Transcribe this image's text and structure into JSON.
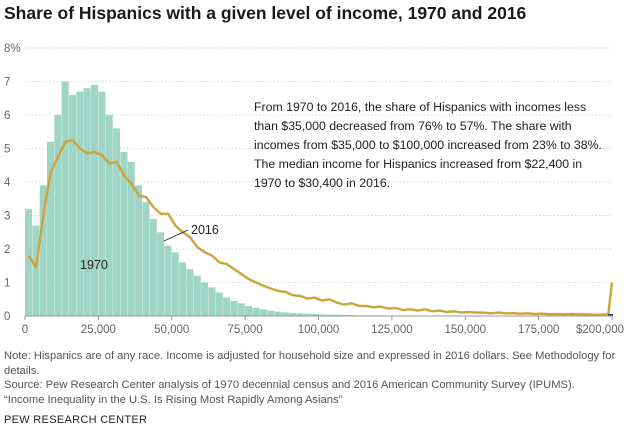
{
  "title": "Share of Hispanics with a given level of income, 1970 and 2016",
  "annotation": "From 1970 to 2016, the share of Hispanics with incomes less than $35,000 decreased from 76% to 57%. The share with incomes from $35,000 to $100,000 increased from 23% to 38%. The median income for Hispanics increased from $22,400 in 1970 to $30,400 in 2016.",
  "notes": {
    "note": "Note: Hispanics are of any race. Income is adjusted for household size and expressed in 2016 dollars. See Methodology for details.",
    "source": "Source: Pew Research Center analysis of 1970 decennial census and 2016 American Community Survey (IPUMS).",
    "report": "“Income Inequality in the U.S. Is Rising Most Rapidly Among Asians”"
  },
  "brand": "PEW RESEARCH CENTER",
  "colors": {
    "series_1970": "#9fd5c4",
    "series_2016": "#cda33a",
    "grid": "#cccccc",
    "axis": "#999999",
    "tail_mark": "#1f4e79"
  },
  "chart_data": {
    "type": "area",
    "xlim": [
      0,
      200000
    ],
    "ylim": [
      0,
      8
    ],
    "x_ticks": [
      0,
      25000,
      50000,
      75000,
      100000,
      125000,
      150000,
      175000,
      200000
    ],
    "x_tick_labels": [
      "0",
      "25,000",
      "50,000",
      "75,000",
      "100,000",
      "125,000",
      "150,000",
      "175,000",
      "$200,000"
    ],
    "y_ticks": [
      0,
      1,
      2,
      3,
      4,
      5,
      6,
      7,
      8
    ],
    "y_tick_labels": [
      "0",
      "1",
      "2",
      "3",
      "4",
      "5",
      "6",
      "7",
      "8%"
    ],
    "grid": true,
    "bin_width": 2500,
    "series": [
      {
        "name": "1970",
        "type": "histogram",
        "x": [
          0,
          2500,
          5000,
          7500,
          10000,
          12500,
          15000,
          17500,
          20000,
          22500,
          25000,
          27500,
          30000,
          32500,
          35000,
          37500,
          40000,
          42500,
          45000,
          47500,
          50000,
          52500,
          55000,
          57500,
          60000,
          62500,
          65000,
          67500,
          70000,
          72500,
          75000,
          77500,
          80000,
          82500,
          85000,
          87500,
          90000,
          92500,
          95000,
          97500,
          100000,
          102500,
          105000,
          107500,
          110000,
          112500,
          115000,
          117500,
          120000,
          122500,
          125000
        ],
        "values": [
          3.2,
          2.7,
          3.9,
          5.2,
          6.0,
          7.0,
          6.6,
          6.7,
          6.8,
          6.9,
          6.7,
          6.0,
          5.6,
          4.9,
          4.6,
          3.9,
          3.4,
          2.9,
          2.5,
          2.1,
          1.9,
          1.6,
          1.4,
          1.2,
          1.0,
          0.85,
          0.7,
          0.55,
          0.45,
          0.38,
          0.3,
          0.25,
          0.2,
          0.16,
          0.13,
          0.11,
          0.09,
          0.08,
          0.07,
          0.06,
          0.05,
          0.04,
          0.04,
          0.03,
          0.03,
          0.02,
          0.02,
          0.02,
          0.02,
          0.01,
          0.01
        ]
      },
      {
        "name": "2016",
        "type": "line",
        "x": [
          0,
          2500,
          5000,
          7500,
          10000,
          12500,
          15000,
          17500,
          20000,
          22500,
          25000,
          27500,
          30000,
          32500,
          35000,
          37500,
          40000,
          42500,
          45000,
          47500,
          50000,
          52500,
          55000,
          57500,
          60000,
          62500,
          65000,
          67500,
          70000,
          72500,
          75000,
          77500,
          80000,
          82500,
          85000,
          87500,
          90000,
          92500,
          95000,
          97500,
          100000,
          102500,
          105000,
          107500,
          110000,
          112500,
          115000,
          117500,
          120000,
          122500,
          125000,
          127500,
          130000,
          132500,
          135000,
          137500,
          140000,
          142500,
          145000,
          147500,
          150000,
          152500,
          155000,
          157500,
          160000,
          162500,
          165000,
          167500,
          170000,
          172500,
          175000,
          177500,
          180000,
          182500,
          185000,
          187500,
          190000,
          192500,
          195000,
          197500,
          200000
        ],
        "values": [
          1.8,
          1.45,
          3.0,
          4.3,
          4.75,
          5.2,
          5.25,
          5.0,
          4.85,
          4.9,
          4.8,
          4.55,
          4.6,
          4.2,
          3.95,
          3.6,
          3.55,
          3.25,
          3.05,
          3.05,
          2.7,
          2.5,
          2.35,
          2.05,
          1.9,
          1.8,
          1.6,
          1.55,
          1.4,
          1.25,
          1.1,
          1.0,
          0.9,
          0.82,
          0.75,
          0.72,
          0.62,
          0.6,
          0.52,
          0.55,
          0.46,
          0.5,
          0.4,
          0.34,
          0.38,
          0.3,
          0.3,
          0.26,
          0.28,
          0.22,
          0.24,
          0.18,
          0.2,
          0.16,
          0.2,
          0.14,
          0.16,
          0.12,
          0.14,
          0.1,
          0.12,
          0.1,
          0.1,
          0.08,
          0.1,
          0.08,
          0.08,
          0.07,
          0.08,
          0.06,
          0.07,
          0.05,
          0.06,
          0.05,
          0.06,
          0.05,
          0.05,
          0.04,
          0.04,
          0.05,
          1.0
        ]
      }
    ]
  }
}
